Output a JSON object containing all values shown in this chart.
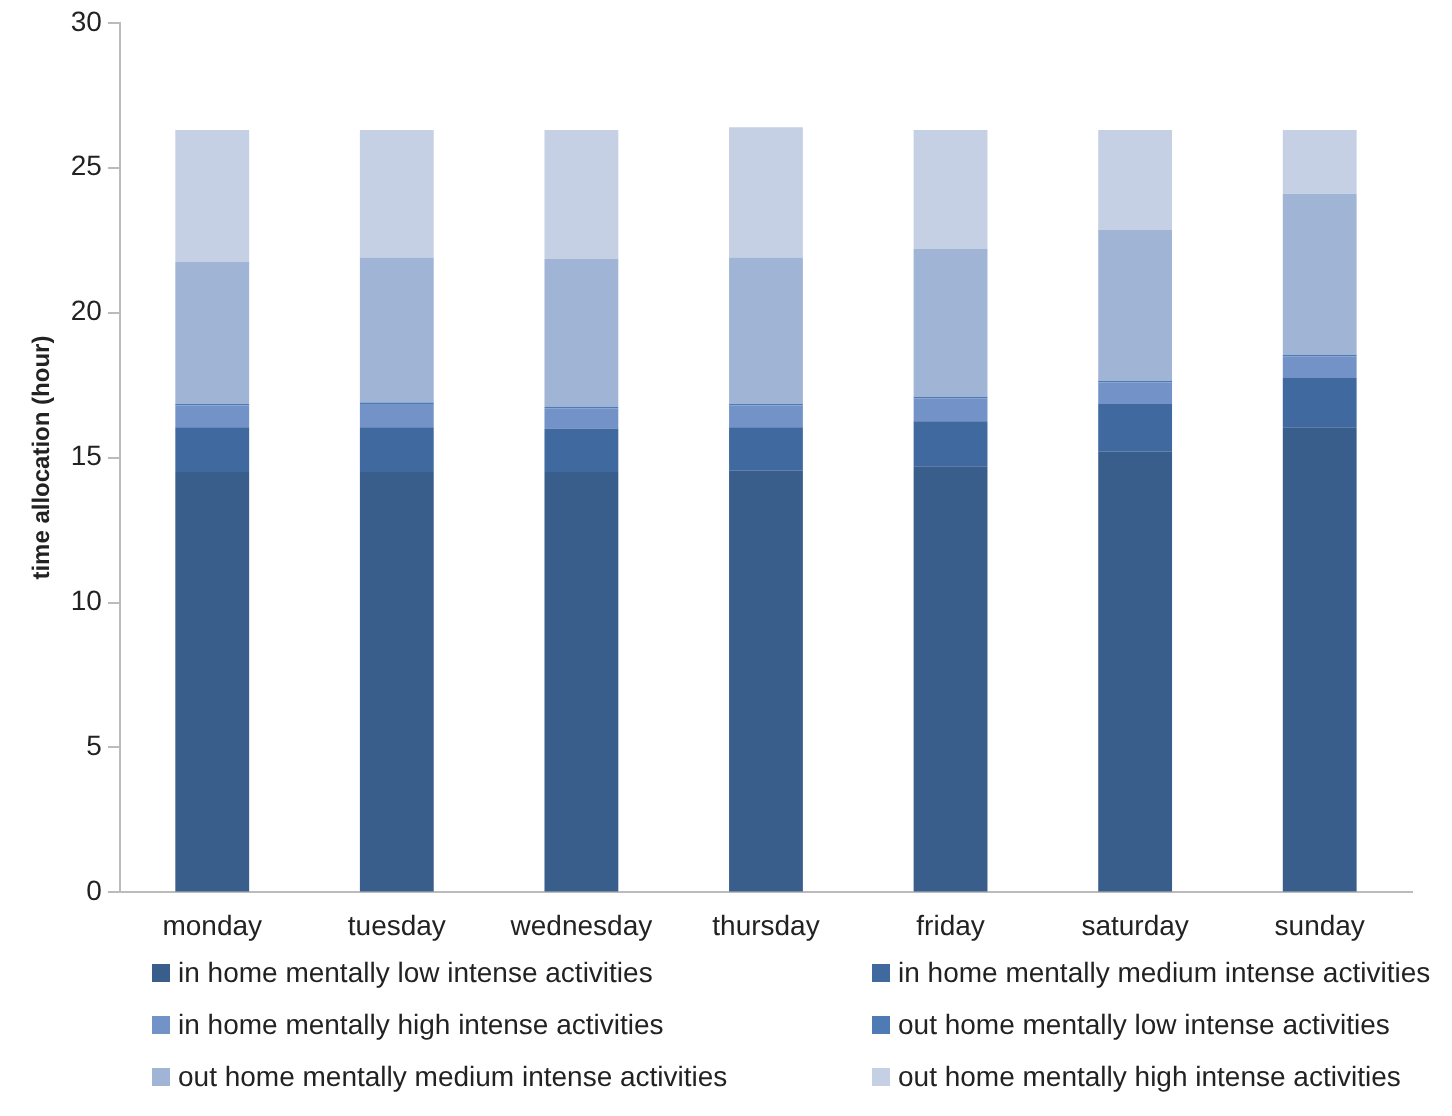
{
  "chart_data": {
    "type": "bar",
    "stacked": true,
    "ylabel": "time allocation (hour)",
    "categories": [
      "monday",
      "tuesday",
      "wednesday",
      "thursday",
      "friday",
      "saturday",
      "sunday"
    ],
    "series": [
      {
        "name": "in home mentally low intense activities",
        "color": "#3a5e8c",
        "values": [
          14.5,
          14.5,
          14.5,
          14.55,
          14.7,
          15.2,
          16.05
        ]
      },
      {
        "name": "in home mentally medium intense activities",
        "color": "#4069a0",
        "values": [
          1.55,
          1.55,
          1.5,
          1.5,
          1.55,
          1.65,
          1.7
        ]
      },
      {
        "name": "in home mentally high intense activities",
        "color": "#7393c8",
        "values": [
          0.75,
          0.8,
          0.7,
          0.75,
          0.8,
          0.75,
          0.75
        ]
      },
      {
        "name": "out home mentally low intense activities",
        "color": "#4f7bb4",
        "values": [
          0.05,
          0.05,
          0.05,
          0.05,
          0.05,
          0.05,
          0.05
        ]
      },
      {
        "name": "out home mentally medium intense activities",
        "color": "#a0b4d6",
        "values": [
          4.9,
          5.0,
          5.1,
          5.05,
          5.1,
          5.2,
          5.55
        ]
      },
      {
        "name": "out home mentally high intense activities",
        "color": "#c5d0e5",
        "values": [
          4.55,
          4.4,
          4.45,
          4.5,
          4.1,
          3.45,
          2.2
        ]
      }
    ],
    "ylim": [
      0,
      30
    ],
    "yticks": [
      0,
      5,
      10,
      15,
      20,
      25,
      30
    ],
    "grid": false,
    "legend": "bottom"
  }
}
